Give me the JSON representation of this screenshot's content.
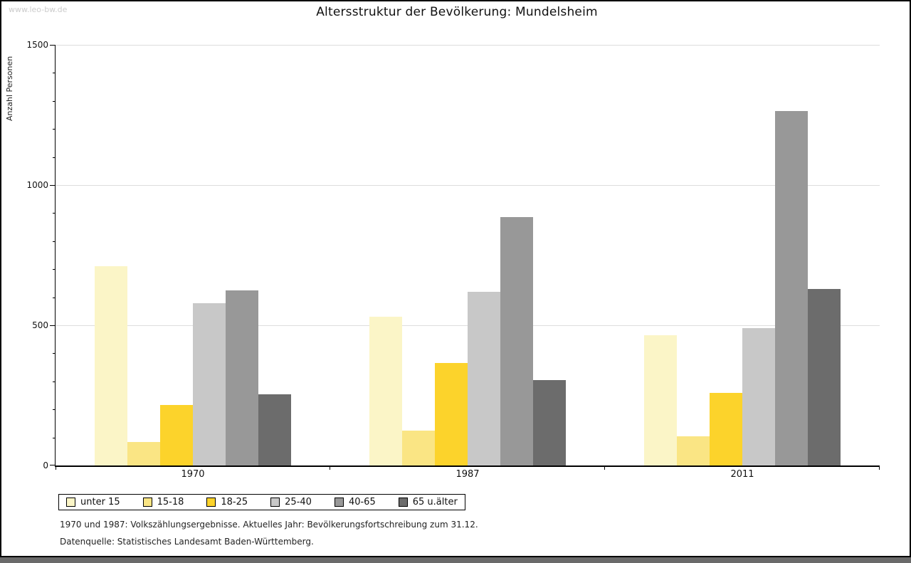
{
  "page": {
    "watermark": "www.leo-bw.de",
    "watermark_color": "#CCCCCC",
    "background": "#FFFFFF",
    "frame_color": "#000000",
    "bottom_bar_color": "#6A6A6A",
    "footnote_line1": "1970 und 1987: Volkszählungsergebnisse. Aktuelles Jahr: Bevölkerungsfortschreibung zum 31.12.",
    "footnote_line2": "Datenquelle: Statistisches Landesamt Baden-Württemberg."
  },
  "chart_data": {
    "type": "bar",
    "title": "Altersstruktur der Bevölkerung: Mundelsheim",
    "ylabel": "Anzahl Personen",
    "xlabel": "",
    "ylim": [
      0,
      1500
    ],
    "yticks": [
      0,
      500,
      1000,
      1500
    ],
    "minor_tick_step": 100,
    "grid": "horizontal-major-only",
    "gridline_color": "#DDDDDD",
    "legend_position": "bottom-left",
    "categories": [
      "1970",
      "1987",
      "2011"
    ],
    "series": [
      {
        "name": "unter 15",
        "color": "#FBF5C7",
        "values": [
          710,
          530,
          465
        ]
      },
      {
        "name": "15-18",
        "color": "#FAE584",
        "values": [
          85,
          125,
          105
        ]
      },
      {
        "name": "18-25",
        "color": "#FCD32B",
        "values": [
          215,
          365,
          260
        ]
      },
      {
        "name": "25-40",
        "color": "#C8C8C8",
        "values": [
          580,
          620,
          490
        ]
      },
      {
        "name": "40-65",
        "color": "#989898",
        "values": [
          625,
          885,
          1265
        ]
      },
      {
        "name": "65 u.älter",
        "color": "#6C6C6C",
        "values": [
          255,
          305,
          630
        ]
      }
    ]
  }
}
